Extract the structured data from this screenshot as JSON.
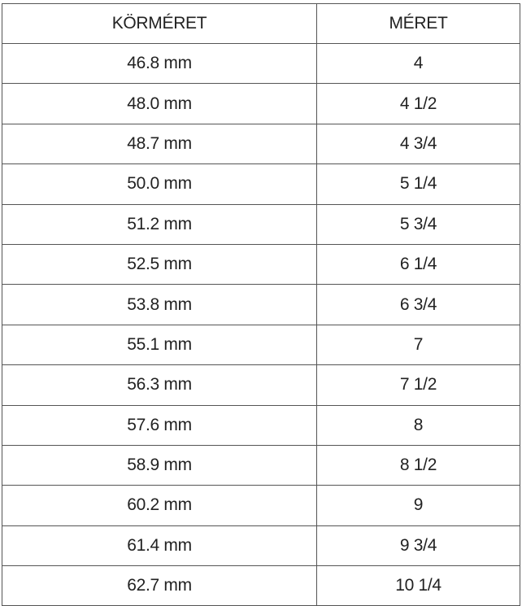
{
  "table": {
    "headers": [
      "KÖRMÉRET",
      "MÉRET"
    ],
    "rows": [
      [
        "46.8 mm",
        "4"
      ],
      [
        "48.0 mm",
        "4 1/2"
      ],
      [
        "48.7 mm",
        "4 3/4"
      ],
      [
        "50.0 mm",
        "5 1/4"
      ],
      [
        "51.2 mm",
        "5 3/4"
      ],
      [
        "52.5 mm",
        "6 1/4"
      ],
      [
        "53.8 mm",
        "6 3/4"
      ],
      [
        "55.1 mm",
        "7"
      ],
      [
        "56.3 mm",
        "7 1/2"
      ],
      [
        "57.6 mm",
        "8"
      ],
      [
        "58.9 mm",
        "8 1/2"
      ],
      [
        "60.2 mm",
        "9"
      ],
      [
        "61.4 mm",
        "9 3/4"
      ],
      [
        "62.7 mm",
        "10 1/4"
      ]
    ]
  }
}
